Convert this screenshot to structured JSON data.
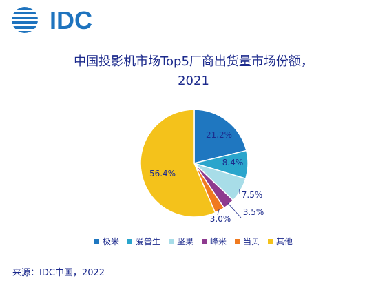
{
  "brand": {
    "logo_text": "IDC",
    "color": "#1e73be"
  },
  "chart_data": {
    "type": "pie",
    "title_line1": "中国投影机市场Top5厂商出货量市场份额，",
    "title_line2": "2021",
    "categories": [
      "极米",
      "爱普生",
      "坚果",
      "峰米",
      "当贝",
      "其他"
    ],
    "values": [
      21.2,
      8.4,
      7.5,
      3.5,
      3.0,
      56.4
    ],
    "labels": [
      "21.2%",
      "8.4%",
      "7.5%",
      "3.5%",
      "3.0%",
      "56.4%"
    ],
    "colors": [
      "#1f77c0",
      "#2aa5cc",
      "#a8dde8",
      "#8e3a8f",
      "#f07a1f",
      "#f4c21b"
    ],
    "legend_position": "bottom"
  },
  "source": "来源：IDC中国，2022"
}
